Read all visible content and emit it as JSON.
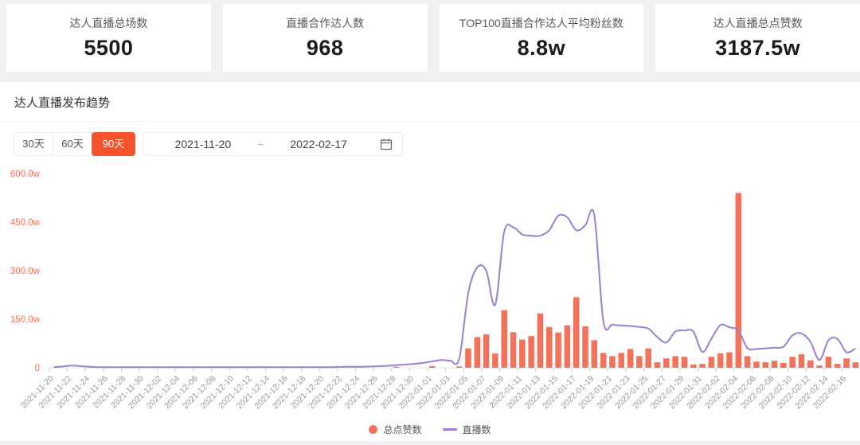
{
  "stat_cards": [
    {
      "label": "达人直播总场数",
      "value": "5500"
    },
    {
      "label": "直播合作达人数",
      "value": "968"
    },
    {
      "label": "TOP100直播合作达人平均粉丝数",
      "value": "8.8w"
    },
    {
      "label": "达人直播总点赞数",
      "value": "3187.5w"
    }
  ],
  "trend_section": {
    "title": "达人直播发布趋势",
    "range_buttons": [
      {
        "label": "30天",
        "active": false
      },
      {
        "label": "60天",
        "active": false
      },
      {
        "label": "90天",
        "active": true
      }
    ],
    "date_range": {
      "start": "2021-11-20",
      "separator": "~",
      "end": "2022-02-17"
    }
  },
  "colors": {
    "accent": "#f5522d",
    "bar": "#f4715a",
    "line": "#9a7fd4",
    "axis_label": "#fa7059",
    "tick_text": "#999999",
    "axis_line": "#e5e5e5"
  },
  "chart_data": {
    "type": "bar",
    "note": "combo chart: bars = 总点赞数 (likes, unit w = 10k), line = 直播数, values read against left axis",
    "title": "达人直播发布趋势",
    "xlabel": "",
    "ylabel": "",
    "ylim": [
      0,
      600
    ],
    "y_ticks": [
      "0",
      "150.0w",
      "300.0w",
      "450.0w",
      "600.0w"
    ],
    "x_tick_interval": 2,
    "grid": false,
    "legend_position": "bottom",
    "categories": [
      "2021-11-20",
      "2021-11-21",
      "2021-11-22",
      "2021-11-23",
      "2021-11-24",
      "2021-11-25",
      "2021-11-26",
      "2021-11-27",
      "2021-11-28",
      "2021-11-29",
      "2021-11-30",
      "2021-12-01",
      "2021-12-02",
      "2021-12-03",
      "2021-12-04",
      "2021-12-05",
      "2021-12-06",
      "2021-12-07",
      "2021-12-08",
      "2021-12-09",
      "2021-12-10",
      "2021-12-11",
      "2021-12-12",
      "2021-12-13",
      "2021-12-14",
      "2021-12-15",
      "2021-12-16",
      "2021-12-17",
      "2021-12-18",
      "2021-12-19",
      "2021-12-20",
      "2021-12-21",
      "2021-12-22",
      "2021-12-23",
      "2021-12-24",
      "2021-12-25",
      "2021-12-26",
      "2021-12-27",
      "2021-12-28",
      "2021-12-29",
      "2021-12-30",
      "2021-12-31",
      "2022-01-01",
      "2022-01-02",
      "2022-01-03",
      "2022-01-04",
      "2022-01-05",
      "2022-01-06",
      "2022-01-07",
      "2022-01-08",
      "2022-01-09",
      "2022-01-10",
      "2022-01-11",
      "2022-01-12",
      "2022-01-13",
      "2022-01-14",
      "2022-01-15",
      "2022-01-16",
      "2022-01-17",
      "2022-01-18",
      "2022-01-19",
      "2022-01-20",
      "2022-01-21",
      "2022-01-22",
      "2022-01-23",
      "2022-01-24",
      "2022-01-25",
      "2022-01-26",
      "2022-01-27",
      "2022-01-28",
      "2022-01-29",
      "2022-01-30",
      "2022-01-31",
      "2022-02-01",
      "2022-02-02",
      "2022-02-03",
      "2022-02-04",
      "2022-02-05",
      "2022-02-06",
      "2022-02-07",
      "2022-02-08",
      "2022-02-09",
      "2022-02-10",
      "2022-02-11",
      "2022-02-12",
      "2022-02-13",
      "2022-02-14",
      "2022-02-15",
      "2022-02-16",
      "2022-02-17"
    ],
    "series": [
      {
        "name": "总点赞数",
        "type": "bar",
        "color": "#f4715a",
        "values": [
          0,
          0,
          0,
          0,
          0,
          0,
          0,
          0,
          0,
          0,
          0,
          0,
          0,
          0,
          0,
          0,
          0,
          0,
          0,
          0,
          0,
          0,
          0,
          0,
          0,
          0,
          0,
          0,
          0,
          0,
          0,
          0,
          0,
          0,
          0,
          0,
          0,
          0,
          3,
          0,
          0,
          0,
          5,
          0,
          0,
          4,
          60,
          95,
          103,
          44,
          178,
          110,
          87,
          98,
          168,
          126,
          109,
          131,
          218,
          128,
          85,
          46,
          36,
          46,
          58,
          36,
          60,
          17,
          29,
          36,
          34,
          10,
          12,
          34,
          44,
          48,
          540,
          36,
          19,
          17,
          22,
          15,
          34,
          42,
          23,
          7,
          34,
          12,
          29,
          17
        ]
      },
      {
        "name": "直播数",
        "type": "line",
        "color": "#9a7fd4",
        "values": [
          2,
          4,
          7,
          5,
          3,
          2,
          2,
          2,
          2,
          2,
          2,
          2,
          2,
          2,
          2,
          2,
          2,
          2,
          2,
          2,
          2,
          2,
          2,
          2,
          2,
          2,
          2,
          2,
          2,
          2,
          2,
          2,
          3,
          3,
          3,
          4,
          5,
          6,
          8,
          10,
          12,
          15,
          20,
          24,
          22,
          28,
          230,
          310,
          300,
          195,
          420,
          434,
          412,
          408,
          408,
          425,
          470,
          465,
          425,
          440,
          472,
          145,
          133,
          131,
          129,
          126,
          121,
          95,
          78,
          112,
          115,
          112,
          49,
          90,
          132,
          125,
          115,
          61,
          58,
          60,
          62,
          65,
          100,
          106,
          80,
          24,
          85,
          89,
          48,
          60
        ]
      }
    ]
  }
}
